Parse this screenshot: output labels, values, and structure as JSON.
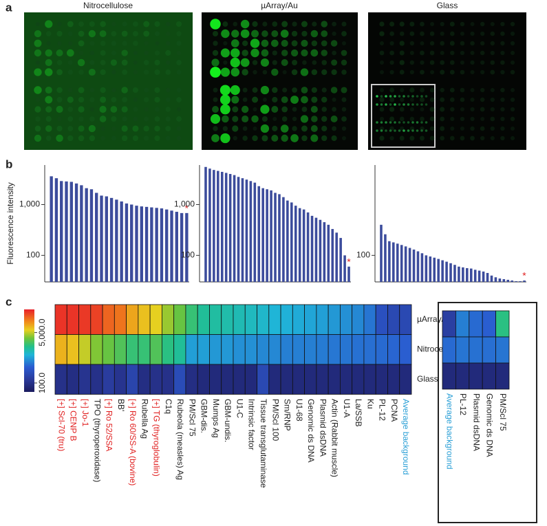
{
  "panel_labels": [
    "a",
    "b",
    "c"
  ],
  "images": [
    {
      "title": "Nitrocellulose"
    },
    {
      "title": "µArray/Au"
    },
    {
      "title": "Glass"
    }
  ],
  "chart_data": [
    {
      "type": "bar",
      "log": true,
      "ylabel": "Fluorescence intensity",
      "color": "#3c4c9c",
      "ylim": [
        30,
        6000
      ],
      "yticks": [
        {
          "value": 1000,
          "label": "1,000"
        },
        100
      ],
      "values": [
        3600,
        3300,
        2900,
        2850,
        2800,
        2600,
        2400,
        2100,
        2000,
        1700,
        1500,
        1450,
        1350,
        1250,
        1150,
        1050,
        1000,
        950,
        920,
        900,
        880,
        860,
        840,
        800,
        760,
        720,
        680,
        680
      ],
      "annotation": "*",
      "annotation_color": "#e02020"
    },
    {
      "type": "bar",
      "log": true,
      "color": "#3c4c9c",
      "ylim": [
        30,
        6000
      ],
      "yticks": [
        {
          "value": 1000,
          "label": "1,000"
        },
        100
      ],
      "values": [
        5500,
        5100,
        4800,
        4600,
        4400,
        4200,
        4000,
        3800,
        3500,
        3300,
        3100,
        2900,
        2700,
        2300,
        2100,
        2000,
        1900,
        1700,
        1600,
        1400,
        1200,
        1100,
        950,
        850,
        800,
        700,
        600,
        550,
        500,
        450,
        400,
        330,
        280,
        220,
        100,
        60
      ],
      "annotation": "*",
      "annotation_color": "#e02020"
    },
    {
      "type": "bar",
      "log": true,
      "color": "#3c4c9c",
      "ylim": [
        30,
        6000
      ],
      "yticks": [
        100
      ],
      "values": [
        400,
        260,
        190,
        180,
        170,
        160,
        150,
        140,
        130,
        120,
        110,
        100,
        95,
        90,
        85,
        80,
        75,
        70,
        65,
        60,
        58,
        56,
        55,
        52,
        50,
        48,
        45,
        40,
        37,
        35,
        34,
        33,
        32,
        31,
        31,
        32
      ],
      "annotation": "*",
      "annotation_color": "#e02020"
    },
    {
      "type": "heatmap",
      "log": true,
      "zlim": [
        50,
        30000
      ],
      "zticks": [
        {
          "value": 5000,
          "label": "5,000.0"
        },
        {
          "value": 100,
          "label": "100.0"
        }
      ],
      "categories": [
        "[+] Scl-70 (tru)",
        "[+] CENP B",
        "[+] Jo-1",
        "TPO (thyroperoxidase)",
        "[+] Ro 52/SSA",
        "BB'",
        "[+] Ro 60/SS-A (bovine)",
        "Rubella Ag",
        "[+] TG (thyroglobulin)",
        "C1q",
        "Rubeola (measles) Ag",
        "PM/Scl 75",
        "GBM-dis.",
        "Mumps Ag",
        "GBM-undis.",
        "U1-C",
        "Intrinsic factor",
        "Tissue transglutaminase",
        "PM/Scl 100",
        "Sm/RNP",
        "U1-68",
        "Genomic ds DNA",
        "Plasmid dsDNA",
        "Actin (Rabbit muscle)",
        "U1-A",
        "La/SSB",
        "Ku",
        "PL-12",
        "PCNA",
        "Average background"
      ],
      "category_colors": [
        "#e02020",
        "#e02020",
        "#e02020",
        "#222222",
        "#e02020",
        "#222222",
        "#e02020",
        "#222222",
        "#e02020",
        "#222222",
        "#222222",
        "#222222",
        "#222222",
        "#222222",
        "#222222",
        "#222222",
        "#222222",
        "#222222",
        "#222222",
        "#222222",
        "#222222",
        "#222222",
        "#222222",
        "#222222",
        "#222222",
        "#222222",
        "#222222",
        "#222222",
        "#222222",
        "#2a9fd6"
      ],
      "series": [
        {
          "name": "µArray/Au",
          "values": [
            25000,
            25000,
            24000,
            22000,
            16000,
            14000,
            9000,
            7000,
            6000,
            4000,
            3000,
            2000,
            1500,
            1400,
            1300,
            1200,
            1100,
            1000,
            900,
            850,
            800,
            750,
            700,
            650,
            600,
            550,
            450,
            250,
            200,
            200
          ]
        },
        {
          "name": "Nitrocellulose",
          "values": [
            8000,
            7000,
            5000,
            3500,
            3000,
            2500,
            2000,
            2000,
            2500,
            1800,
            1500,
            700,
            700,
            650,
            650,
            600,
            600,
            550,
            550,
            500,
            500,
            500,
            480,
            460,
            450,
            430,
            420,
            400,
            380,
            350
          ]
        },
        {
          "name": "Glass",
          "values": [
            100,
            90,
            110,
            100,
            140,
            110,
            180,
            90,
            100,
            100,
            220,
            90,
            80,
            80,
            80,
            80,
            80,
            200,
            80,
            80,
            80,
            80,
            80,
            80,
            80,
            80,
            80,
            80,
            80,
            80
          ]
        }
      ]
    },
    {
      "type": "heatmap",
      "log": true,
      "zlim": [
        50,
        30000
      ],
      "categories": [
        "Average background",
        "PL-12",
        "Plasmid dsDNA",
        "Genomic ds DNA",
        "PM/Scl 75"
      ],
      "category_colors": [
        "#2a9fd6",
        "#222222",
        "#222222",
        "#222222",
        "#222222"
      ],
      "series": [
        {
          "values": [
            150,
            500,
            400,
            350,
            1800
          ]
        },
        {
          "values": [
            400,
            450,
            430,
            420,
            450
          ]
        },
        {
          "values": [
            80,
            80,
            80,
            80,
            80
          ]
        }
      ]
    }
  ]
}
